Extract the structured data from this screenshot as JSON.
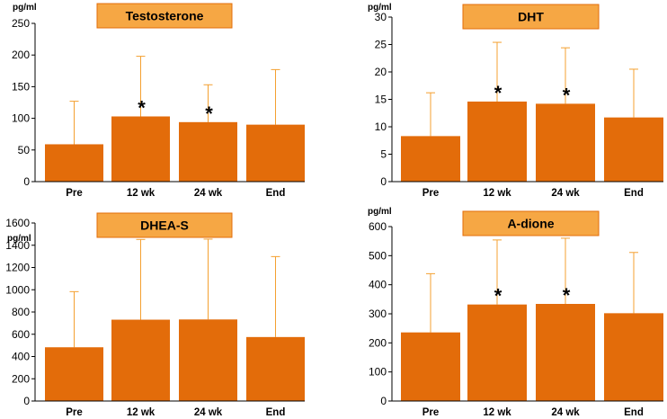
{
  "colors": {
    "bar": "#e36c0a",
    "error": "#f4a030",
    "title_bg": "#f6a744",
    "title_border": "#e36c0a",
    "axis": "#000000"
  },
  "chart_data": [
    {
      "type": "bar",
      "title": "Testosterone",
      "unit_label": "pg/ml",
      "categories": [
        "Pre",
        "12 wk",
        "24 wk",
        "End"
      ],
      "values": [
        59,
        103,
        94,
        90
      ],
      "error_upper": [
        127,
        198,
        153,
        177
      ],
      "significant": [
        false,
        true,
        true,
        false
      ],
      "ylim": [
        0,
        250
      ],
      "ticks": [
        0,
        50,
        100,
        150,
        200,
        250
      ]
    },
    {
      "type": "bar",
      "title": "DHT",
      "unit_label": "pg/ml",
      "categories": [
        "Pre",
        "12 wk",
        "24 wk",
        "End"
      ],
      "values": [
        8.3,
        14.6,
        14.2,
        11.7
      ],
      "error_upper": [
        16.2,
        25.4,
        24.4,
        20.5
      ],
      "significant": [
        false,
        true,
        true,
        false
      ],
      "ylim": [
        0,
        30
      ],
      "ticks": [
        0,
        5,
        10,
        15,
        20,
        25,
        30
      ]
    },
    {
      "type": "bar",
      "title": "DHEA-S",
      "unit_label": "pg/ml",
      "categories": [
        "Pre",
        "12 wk",
        "24 wk",
        "End"
      ],
      "values": [
        483,
        731,
        733,
        575
      ],
      "error_upper": [
        983,
        1452,
        1455,
        1298
      ],
      "significant": [
        false,
        false,
        false,
        false
      ],
      "ylim": [
        0,
        1600
      ],
      "ticks": [
        0,
        200,
        400,
        600,
        800,
        1000,
        1200,
        1400,
        1600
      ]
    },
    {
      "type": "bar",
      "title": "A-dione",
      "unit_label": "pg/ml",
      "categories": [
        "Pre",
        "12 wk",
        "24 wk",
        "End"
      ],
      "values": [
        236,
        332,
        334,
        302
      ],
      "error_upper": [
        438,
        554,
        560,
        511
      ],
      "significant": [
        false,
        true,
        true,
        false
      ],
      "ylim": [
        0,
        600
      ],
      "ticks": [
        0,
        100,
        200,
        300,
        400,
        500,
        600
      ]
    }
  ],
  "significance_marker": "*"
}
